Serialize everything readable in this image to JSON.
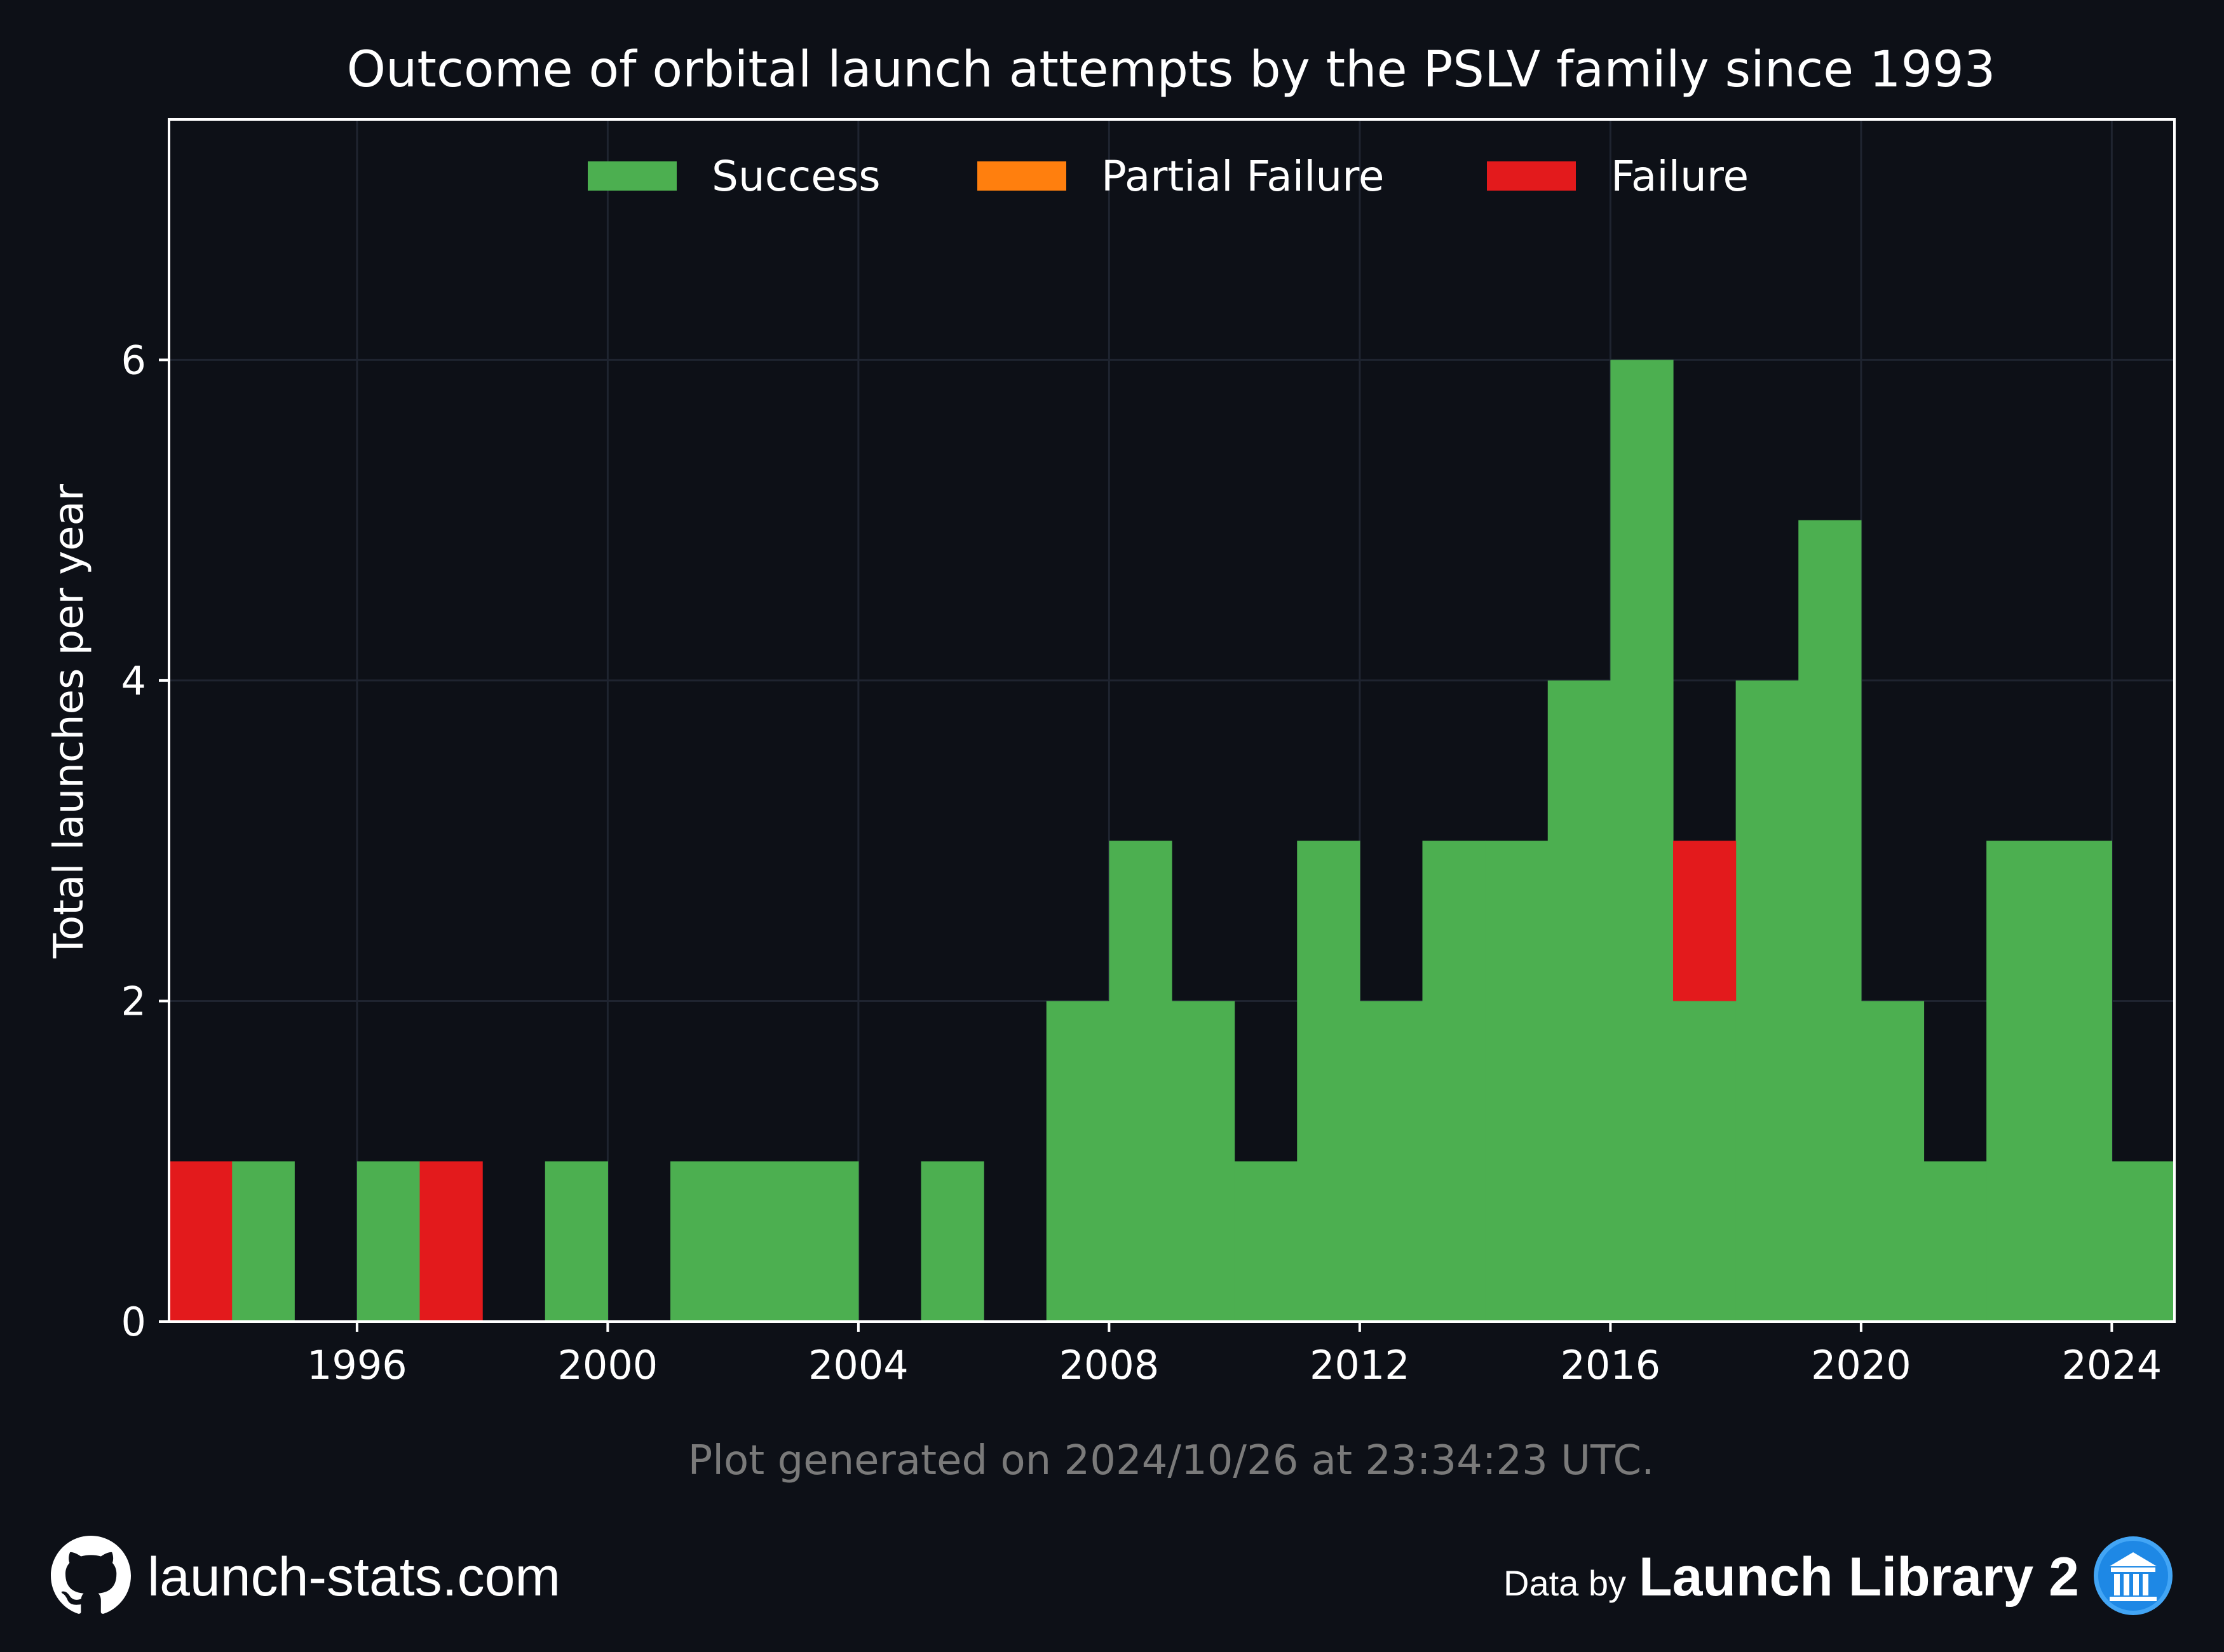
{
  "chart_data": {
    "type": "bar",
    "stacked": true,
    "title": "Outcome of orbital launch attempts by the PSLV family since 1993",
    "ylabel": "Total launches per year",
    "xlabel": "",
    "xlim": [
      1993,
      2025
    ],
    "ylim": [
      0,
      7.5
    ],
    "x_ticks": [
      1996,
      2000,
      2004,
      2008,
      2012,
      2016,
      2020,
      2024
    ],
    "y_ticks": [
      0,
      2,
      4,
      6
    ],
    "grid": true,
    "legend_position": "top-center",
    "years": [
      1993,
      1994,
      1995,
      1996,
      1997,
      1998,
      1999,
      2000,
      2001,
      2002,
      2003,
      2004,
      2005,
      2006,
      2007,
      2008,
      2009,
      2010,
      2011,
      2012,
      2013,
      2014,
      2015,
      2016,
      2017,
      2018,
      2019,
      2020,
      2021,
      2022,
      2023,
      2024
    ],
    "series": [
      {
        "name": "Success",
        "color": "#4caf50",
        "values": [
          0,
          1,
          0,
          1,
          0,
          0,
          1,
          0,
          1,
          1,
          1,
          0,
          1,
          0,
          2,
          3,
          2,
          1,
          3,
          2,
          3,
          3,
          4,
          6,
          2,
          4,
          5,
          2,
          1,
          3,
          3,
          1
        ]
      },
      {
        "name": "Partial Failure",
        "color": "#ff7f0e",
        "values": [
          0,
          0,
          0,
          0,
          0,
          0,
          0,
          0,
          0,
          0,
          0,
          0,
          0,
          0,
          0,
          0,
          0,
          0,
          0,
          0,
          0,
          0,
          0,
          0,
          0,
          0,
          0,
          0,
          0,
          0,
          0,
          0
        ]
      },
      {
        "name": "Failure",
        "color": "#e31a1c",
        "values": [
          1,
          0,
          0,
          0,
          1,
          0,
          0,
          0,
          0,
          0,
          0,
          0,
          0,
          0,
          0,
          0,
          0,
          0,
          0,
          0,
          0,
          0,
          0,
          0,
          1,
          0,
          0,
          0,
          0,
          0,
          0,
          0
        ]
      }
    ]
  },
  "caption": "Plot generated on 2024/10/26 at 23:34:23 UTC.",
  "footer": {
    "site": "launch-stats.com",
    "site_icon": "github-icon",
    "data_by_label": "Data by",
    "data_source": "Launch Library 2",
    "source_icon": "launch-library-icon",
    "source_icon_color": "#42a5f5"
  }
}
